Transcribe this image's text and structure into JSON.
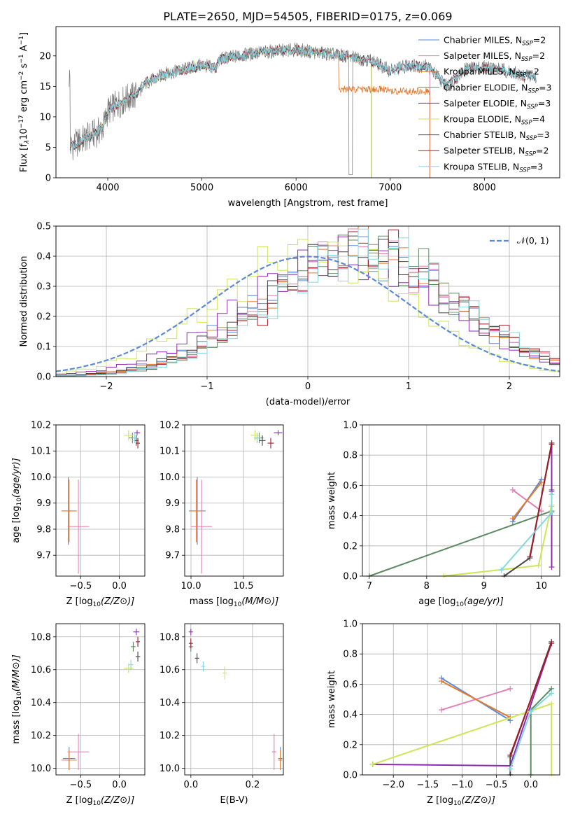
{
  "figure": {
    "title": "PLATE=2650, MJD=54505, FIBERID=0175, z=0.069",
    "sub_label": "SSP"
  },
  "colors": {
    "chabrier_miles": "#5b8ad6",
    "salpeter_miles": "#e47fb3",
    "kroupa_miles": "#e3792f",
    "chabrier_elodie": "#5e8a63",
    "salpeter_elodie": "#8e2ab1",
    "kroupa_elodie": "#cde655",
    "chabrier_stelib": "#474747",
    "salpeter_stelib": "#a21a26",
    "kroupa_stelib": "#82d8e0",
    "data": "#777777",
    "normal": "#5b8ad6",
    "grid": "#b0b0b0"
  },
  "chart_data": [
    {
      "id": "spectrum",
      "type": "line",
      "xlabel": "wavelength [Angstrom, rest frame]",
      "ylabel": "Flux [f",
      "ylabel_parts": [
        "Flux [f",
        "λ",
        "10",
        "−17",
        " erg cm",
        "−2",
        " s",
        "−1",
        " A",
        "−1",
        "]"
      ],
      "xlim": [
        3450,
        8800
      ],
      "ylim": [
        0,
        24.8
      ],
      "xticks": [
        4000,
        5000,
        6000,
        7000,
        8000
      ],
      "yticks": [
        0,
        5,
        10,
        15,
        20
      ],
      "grid": false,
      "legend_position": "top-right",
      "legend": [
        {
          "label": "Chabrier MILES, N",
          "n": "=2",
          "color_key": "chabrier_miles"
        },
        {
          "label": "Salpeter MILES, N",
          "n": "=2",
          "color_key": "salpeter_miles"
        },
        {
          "label": "Kroupa MILES, N",
          "n": "=2",
          "color_key": "kroupa_miles"
        },
        {
          "label": "Chabrier ELODIE, N",
          "n": "=3",
          "color_key": "chabrier_elodie"
        },
        {
          "label": "Salpeter ELODIE, N",
          "n": "=3",
          "color_key": "salpeter_elodie"
        },
        {
          "label": "Kroupa ELODIE, N",
          "n": "=4",
          "color_key": "kroupa_elodie"
        },
        {
          "label": "Chabrier STELIB, N",
          "n": "=3",
          "color_key": "chabrier_stelib"
        },
        {
          "label": "Salpeter STELIB, N",
          "n": "=2",
          "color_key": "salpeter_stelib"
        },
        {
          "label": "Kroupa STELIB, N",
          "n": "=3",
          "color_key": "kroupa_stelib"
        }
      ],
      "continuum_knots": [
        [
          3600,
          5.0
        ],
        [
          3700,
          6.0
        ],
        [
          3800,
          6.8
        ],
        [
          3900,
          7.5
        ],
        [
          3950,
          8.2
        ],
        [
          4000,
          11.0
        ],
        [
          4100,
          12.0
        ],
        [
          4200,
          13.0
        ],
        [
          4300,
          13.5
        ],
        [
          4400,
          15.5
        ],
        [
          4600,
          17.0
        ],
        [
          4800,
          17.7
        ],
        [
          5000,
          18.5
        ],
        [
          5150,
          18.0
        ],
        [
          5200,
          19.5
        ],
        [
          5400,
          20.0
        ],
        [
          5600,
          20.5
        ],
        [
          5800,
          20.8
        ],
        [
          6000,
          21.0
        ],
        [
          6200,
          20.6
        ],
        [
          6400,
          20.2
        ],
        [
          6600,
          19.8
        ],
        [
          6800,
          19.2
        ],
        [
          7000,
          17.6
        ],
        [
          7200,
          18.5
        ],
        [
          7400,
          18.3
        ],
        [
          7600,
          15.0
        ],
        [
          7800,
          17.8
        ],
        [
          8000,
          18.2
        ],
        [
          8200,
          17.7
        ],
        [
          8400,
          16.8
        ],
        [
          8550,
          16.5
        ]
      ],
      "miles_cut": 6800,
      "miles_cut_value": 0
    },
    {
      "id": "residual-hist",
      "type": "histogram",
      "xlabel": "(data-model)/error",
      "ylabel": "Normed distribution",
      "xlim": [
        -2.5,
        2.5
      ],
      "ylim": [
        0,
        0.5
      ],
      "xticks": [
        -2,
        -1,
        0,
        1,
        2
      ],
      "yticks": [
        0,
        0.1,
        0.2,
        0.3,
        0.4,
        0.5
      ],
      "grid": true,
      "legend_position": "top-right",
      "legend_label": "N(0,1)",
      "bin_width": 0.1,
      "bin_start": -2.5,
      "histograms": [
        {
          "color_key": "chabrier_miles",
          "mean": 0.45,
          "sigma": 0.95,
          "peak": 0.41,
          "phase": 1.3
        },
        {
          "color_key": "salpeter_miles",
          "mean": 0.55,
          "sigma": 0.93,
          "peak": 0.42,
          "phase": 2.1
        },
        {
          "color_key": "kroupa_miles",
          "mean": 0.5,
          "sigma": 0.95,
          "peak": 0.42,
          "phase": 0.4
        },
        {
          "color_key": "chabrier_elodie",
          "mean": 0.55,
          "sigma": 0.9,
          "peak": 0.43,
          "phase": 3.3
        },
        {
          "color_key": "salpeter_elodie",
          "mean": 0.35,
          "sigma": 1.0,
          "peak": 0.4,
          "phase": 4.6
        },
        {
          "color_key": "kroupa_elodie",
          "mean": 0.05,
          "sigma": 0.95,
          "peak": 0.42,
          "phase": 5.2
        },
        {
          "color_key": "chabrier_stelib",
          "mean": 0.5,
          "sigma": 0.95,
          "peak": 0.41,
          "phase": 2.8
        },
        {
          "color_key": "salpeter_stelib",
          "mean": 0.6,
          "sigma": 0.95,
          "peak": 0.41,
          "phase": 1.9
        },
        {
          "color_key": "kroupa_stelib",
          "mean": 0.6,
          "sigma": 0.93,
          "peak": 0.41,
          "phase": 0.9
        }
      ]
    },
    {
      "id": "age-vs-z",
      "type": "scatter",
      "xlabel": "Z [log10(Z/Z⊙)]",
      "ylabel": "age  [log10(age/yr)]",
      "xlim": [
        -0.82,
        0.33
      ],
      "ylim": [
        9.62,
        10.2
      ],
      "xticks": [
        -0.5,
        0.0
      ],
      "yticks": [
        9.7,
        9.8,
        9.9,
        10.0,
        10.1,
        10.2
      ],
      "grid": true,
      "points": [
        {
          "color_key": "chabrier_miles",
          "x": -0.66,
          "y": 9.87,
          "xerr": 0.08,
          "yerr": 0.13
        },
        {
          "color_key": "salpeter_miles",
          "x": -0.53,
          "y": 9.81,
          "xerr": 0.14,
          "yerr": 0.18
        },
        {
          "color_key": "kroupa_miles",
          "x": -0.65,
          "y": 9.87,
          "xerr": 0.1,
          "yerr": 0.12
        },
        {
          "color_key": "chabrier_elodie",
          "x": 0.17,
          "y": 10.15,
          "xerr": 0.05,
          "yerr": 0.02
        },
        {
          "color_key": "salpeter_elodie",
          "x": 0.23,
          "y": 10.17,
          "xerr": 0.04,
          "yerr": 0.01
        },
        {
          "color_key": "kroupa_elodie",
          "x": 0.12,
          "y": 10.16,
          "xerr": 0.06,
          "yerr": 0.02
        },
        {
          "color_key": "chabrier_stelib",
          "x": 0.22,
          "y": 10.14,
          "xerr": 0.03,
          "yerr": 0.02
        },
        {
          "color_key": "salpeter_stelib",
          "x": 0.24,
          "y": 10.13,
          "xerr": 0.02,
          "yerr": 0.02
        },
        {
          "color_key": "kroupa_stelib",
          "x": 0.2,
          "y": 10.15,
          "xerr": 0.03,
          "yerr": 0.02
        }
      ]
    },
    {
      "id": "age-vs-mass",
      "type": "scatter",
      "xlabel": "mass [log10(M/M⊙)]",
      "ylabel": "",
      "xlim": [
        9.94,
        10.88
      ],
      "ylim": [
        9.62,
        10.2
      ],
      "xticks": [
        10.0,
        10.5
      ],
      "yticks": [
        9.7,
        9.8,
        9.9,
        10.0,
        10.1,
        10.2
      ],
      "grid": true,
      "points": [
        {
          "color_key": "chabrier_miles",
          "x": 10.06,
          "y": 9.87,
          "xerr": 0.08,
          "yerr": 0.13
        },
        {
          "color_key": "salpeter_miles",
          "x": 10.1,
          "y": 9.81,
          "xerr": 0.1,
          "yerr": 0.18
        },
        {
          "color_key": "kroupa_miles",
          "x": 10.05,
          "y": 9.87,
          "xerr": 0.06,
          "yerr": 0.12
        },
        {
          "color_key": "chabrier_elodie",
          "x": 10.65,
          "y": 10.15,
          "xerr": 0.04,
          "yerr": 0.02
        },
        {
          "color_key": "salpeter_elodie",
          "x": 10.83,
          "y": 10.17,
          "xerr": 0.04,
          "yerr": 0.01
        },
        {
          "color_key": "kroupa_elodie",
          "x": 10.61,
          "y": 10.16,
          "xerr": 0.04,
          "yerr": 0.02
        },
        {
          "color_key": "chabrier_stelib",
          "x": 10.68,
          "y": 10.14,
          "xerr": 0.03,
          "yerr": 0.02
        },
        {
          "color_key": "salpeter_stelib",
          "x": 10.76,
          "y": 10.13,
          "xerr": 0.03,
          "yerr": 0.02
        },
        {
          "color_key": "kroupa_stelib",
          "x": 10.63,
          "y": 10.15,
          "xerr": 0.03,
          "yerr": 0.02
        }
      ]
    },
    {
      "id": "mass-vs-z",
      "type": "scatter",
      "xlabel": "Z [log10(Z/Z⊙)]",
      "ylabel": "mass [log10(M/M⊙)]",
      "xlim": [
        -0.82,
        0.33
      ],
      "ylim": [
        9.96,
        10.88
      ],
      "xticks": [
        -0.5,
        0.0
      ],
      "yticks": [
        10.0,
        10.2,
        10.4,
        10.6,
        10.8
      ],
      "grid": true,
      "points": [
        {
          "color_key": "chabrier_miles",
          "x": -0.65,
          "y": 10.06,
          "xerr": 0.08,
          "yerr": 0.07
        },
        {
          "color_key": "salpeter_miles",
          "x": -0.53,
          "y": 10.1,
          "xerr": 0.14,
          "yerr": 0.11
        },
        {
          "color_key": "kroupa_miles",
          "x": -0.65,
          "y": 10.05,
          "xerr": 0.1,
          "yerr": 0.06
        },
        {
          "color_key": "chabrier_elodie",
          "x": 0.18,
          "y": 10.74,
          "xerr": 0.03,
          "yerr": 0.03
        },
        {
          "color_key": "salpeter_elodie",
          "x": 0.22,
          "y": 10.83,
          "xerr": 0.04,
          "yerr": 0.02
        },
        {
          "color_key": "kroupa_elodie",
          "x": 0.12,
          "y": 10.61,
          "xerr": 0.06,
          "yerr": 0.03
        },
        {
          "color_key": "chabrier_stelib",
          "x": 0.24,
          "y": 10.68,
          "xerr": 0.03,
          "yerr": 0.03
        },
        {
          "color_key": "salpeter_stelib",
          "x": 0.24,
          "y": 10.77,
          "xerr": 0.02,
          "yerr": 0.03
        },
        {
          "color_key": "kroupa_stelib",
          "x": 0.15,
          "y": 10.63,
          "xerr": 0.03,
          "yerr": 0.03
        }
      ]
    },
    {
      "id": "mass-vs-ebv",
      "type": "scatter",
      "xlabel": "E(B-V)",
      "ylabel": "",
      "xlim": [
        -0.02,
        0.3
      ],
      "ylim": [
        9.96,
        10.88
      ],
      "xticks": [
        0.0,
        0.2
      ],
      "yticks": [
        10.0,
        10.2,
        10.4,
        10.6,
        10.8
      ],
      "grid": true,
      "points": [
        {
          "color_key": "chabrier_miles",
          "x": 0.29,
          "y": 10.06,
          "xerr": 0.0,
          "yerr": 0.07
        },
        {
          "color_key": "salpeter_miles",
          "x": 0.27,
          "y": 10.1,
          "xerr": 0.0,
          "yerr": 0.11
        },
        {
          "color_key": "kroupa_miles",
          "x": 0.29,
          "y": 10.05,
          "xerr": 0.0,
          "yerr": 0.06
        },
        {
          "color_key": "chabrier_elodie",
          "x": 0.0,
          "y": 10.74,
          "xerr": 0.0,
          "yerr": 0.03
        },
        {
          "color_key": "salpeter_elodie",
          "x": 0.0,
          "y": 10.83,
          "xerr": 0.0,
          "yerr": 0.02
        },
        {
          "color_key": "kroupa_elodie",
          "x": 0.11,
          "y": 10.58,
          "xerr": 0.0,
          "yerr": 0.04
        },
        {
          "color_key": "chabrier_stelib",
          "x": 0.02,
          "y": 10.67,
          "xerr": 0.0,
          "yerr": 0.03
        },
        {
          "color_key": "salpeter_stelib",
          "x": 0.0,
          "y": 10.76,
          "xerr": 0.0,
          "yerr": 0.03
        },
        {
          "color_key": "kroupa_stelib",
          "x": 0.04,
          "y": 10.62,
          "xerr": 0.0,
          "yerr": 0.03
        }
      ]
    },
    {
      "id": "weight-vs-age",
      "type": "line",
      "xlabel": "age  [log10(age/yr)]",
      "ylabel": "mass weight",
      "xlim": [
        6.88,
        10.32
      ],
      "ylim": [
        0,
        1.0
      ],
      "xticks": [
        7,
        8,
        9,
        10
      ],
      "yticks": [
        0.0,
        0.2,
        0.4,
        0.6,
        0.8,
        1.0
      ],
      "grid": true,
      "series": [
        {
          "color_key": "chabrier_miles",
          "points": [
            [
              9.5,
              0.36
            ],
            [
              10.0,
              0.64
            ]
          ]
        },
        {
          "color_key": "salpeter_miles",
          "points": [
            [
              9.5,
              0.57
            ],
            [
              10.0,
              0.43
            ]
          ]
        },
        {
          "color_key": "kroupa_miles",
          "points": [
            [
              9.5,
              0.38
            ],
            [
              10.0,
              0.62
            ]
          ]
        },
        {
          "color_key": "chabrier_elodie",
          "points": [
            [
              7.0,
              0.0
            ],
            [
              10.18,
              0.43
            ],
            [
              10.18,
              0.57
            ]
          ]
        },
        {
          "color_key": "salpeter_elodie",
          "points": [
            [
              10.18,
              0.06
            ],
            [
              10.18,
              0.56
            ],
            [
              10.18,
              0.87
            ]
          ]
        },
        {
          "color_key": "kroupa_elodie",
          "points": [
            [
              8.3,
              0.0
            ],
            [
              9.95,
              0.07
            ],
            [
              10.18,
              0.47
            ],
            [
              10.18,
              0.46
            ]
          ]
        },
        {
          "color_key": "chabrier_stelib",
          "points": [
            [
              9.35,
              0.0
            ],
            [
              9.8,
              0.12
            ],
            [
              10.18,
              0.88
            ]
          ]
        },
        {
          "color_key": "salpeter_stelib",
          "points": [
            [
              9.8,
              0.13
            ],
            [
              10.18,
              0.87
            ]
          ]
        },
        {
          "color_key": "kroupa_stelib",
          "points": [
            [
              9.3,
              0.04
            ],
            [
              10.18,
              0.42
            ],
            [
              10.18,
              0.54
            ]
          ]
        }
      ]
    },
    {
      "id": "weight-vs-z",
      "type": "line",
      "xlabel": "Z [log10(Z/Z⊙)]",
      "ylabel": "mass weight",
      "xlim": [
        -2.45,
        0.42
      ],
      "ylim": [
        0,
        1.0
      ],
      "xticks": [
        -2.0,
        -1.5,
        -1.0,
        -0.5,
        0.0
      ],
      "yticks": [
        0.0,
        0.2,
        0.4,
        0.6,
        0.8,
        1.0
      ],
      "grid": true,
      "series": [
        {
          "color_key": "chabrier_miles",
          "points": [
            [
              -1.3,
              0.64
            ],
            [
              -0.3,
              0.36
            ]
          ]
        },
        {
          "color_key": "salpeter_miles",
          "points": [
            [
              -1.3,
              0.43
            ],
            [
              -0.3,
              0.57
            ]
          ]
        },
        {
          "color_key": "kroupa_miles",
          "points": [
            [
              -1.3,
              0.62
            ],
            [
              -0.3,
              0.38
            ]
          ]
        },
        {
          "color_key": "chabrier_elodie",
          "points": [
            [
              0.0,
              0.0
            ],
            [
              0.0,
              0.43
            ],
            [
              0.3,
              0.57
            ]
          ]
        },
        {
          "color_key": "salpeter_elodie",
          "points": [
            [
              -2.3,
              0.07
            ],
            [
              -0.3,
              0.06
            ],
            [
              0.3,
              0.87
            ]
          ]
        },
        {
          "color_key": "kroupa_elodie",
          "points": [
            [
              -2.3,
              0.07
            ],
            [
              0.3,
              0.47
            ],
            [
              0.3,
              0.0
            ]
          ]
        },
        {
          "color_key": "chabrier_stelib",
          "points": [
            [
              -0.3,
              0.0
            ],
            [
              -0.3,
              0.12
            ],
            [
              0.3,
              0.88
            ]
          ]
        },
        {
          "color_key": "salpeter_stelib",
          "points": [
            [
              -0.3,
              0.13
            ],
            [
              0.3,
              0.87
            ]
          ]
        },
        {
          "color_key": "kroupa_stelib",
          "points": [
            [
              -0.3,
              0.04
            ],
            [
              0.0,
              0.42
            ],
            [
              0.3,
              0.54
            ]
          ]
        }
      ]
    }
  ]
}
